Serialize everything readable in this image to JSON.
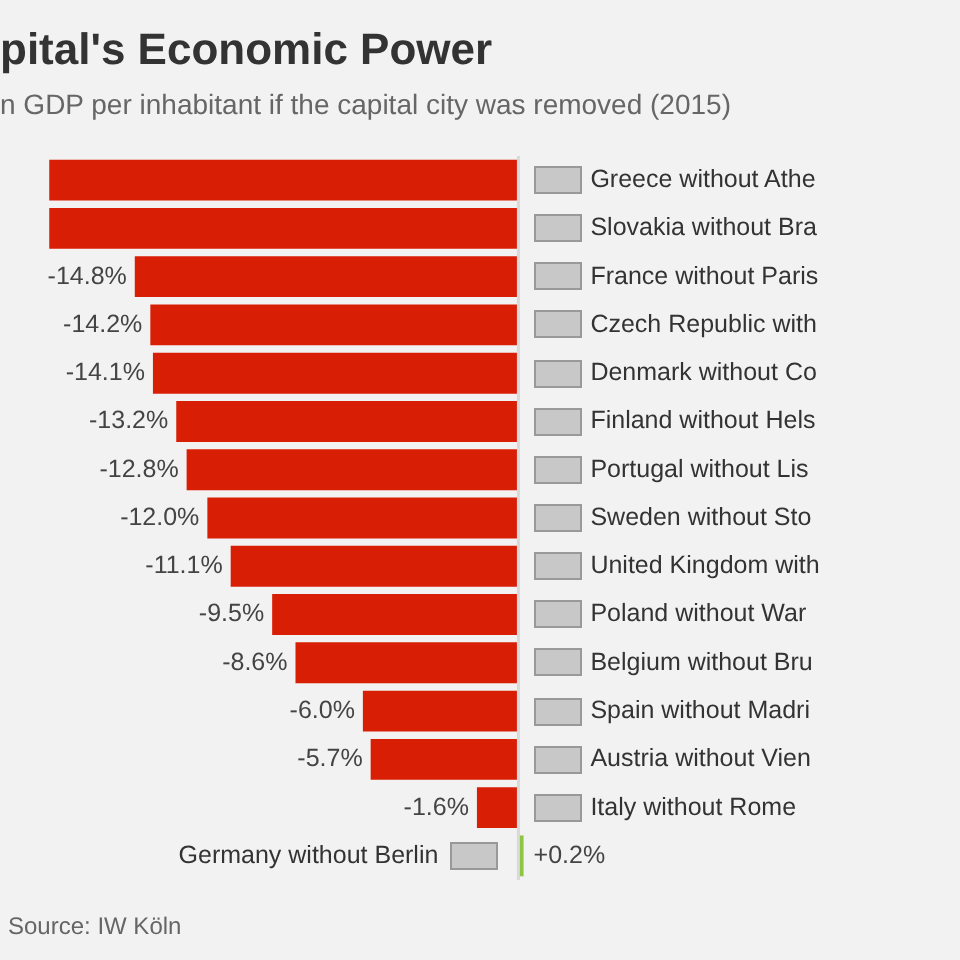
{
  "chart_data": {
    "type": "bar",
    "orientation": "horizontal",
    "title": "pital's Economic Power",
    "subtitle": "n GDP per inhabitant if the capital city was removed (2015)",
    "categories": [
      "Greece without Athe",
      "Slovakia without Bra",
      "France without Paris",
      "Czech Republic with",
      "Denmark without Co",
      "Finland without Hels",
      "Portugal without Lis",
      "Sweden without Sto",
      "United Kingdom with",
      "Poland without War",
      "Belgium without Bru",
      "Spain without Madri",
      "Austria without Vien",
      "Italy without Rome",
      "Germany without Berlin"
    ],
    "values": [
      -18.1,
      -18.1,
      -14.8,
      -14.2,
      -14.1,
      -13.2,
      -12.8,
      -12.0,
      -11.1,
      -9.5,
      -8.6,
      -6.0,
      -5.7,
      -1.6,
      0.2
    ],
    "value_labels": [
      null,
      null,
      "-14.8%",
      "-14.2%",
      "-14.1%",
      "-13.2%",
      "-12.8%",
      "-12.0%",
      "-11.1%",
      "-9.5%",
      "-8.6%",
      "-6.0%",
      "-5.7%",
      "-1.6%",
      "+0.2%"
    ],
    "colors": [
      "#d81e05",
      "#d81e05",
      "#d81e05",
      "#d81e05",
      "#d81e05",
      "#d81e05",
      "#d81e05",
      "#d81e05",
      "#d81e05",
      "#d81e05",
      "#d81e05",
      "#d81e05",
      "#d81e05",
      "#d81e05",
      "#8dc63f"
    ],
    "tick_labels": false,
    "grid": false,
    "legend": false,
    "ref_lines": [
      {
        "axis": "x",
        "value": 0,
        "color": "#d9d9d9"
      }
    ],
    "annotations": [
      "Source: IW Köln"
    ]
  }
}
